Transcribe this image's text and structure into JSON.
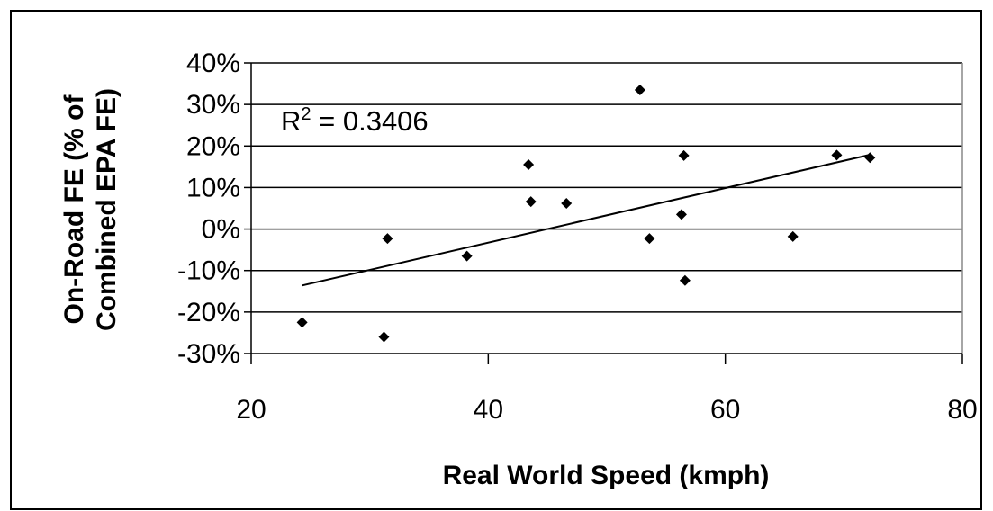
{
  "chart_data": {
    "type": "scatter",
    "title": "",
    "xlabel": "Real World Speed (kmph)",
    "ylabel_lines": [
      "On-Road FE (% of",
      "Combined EPA FE)"
    ],
    "xlim": [
      20,
      80
    ],
    "ylim": [
      -30,
      40
    ],
    "x_ticks": [
      20,
      40,
      60,
      80
    ],
    "y_ticks": [
      -30,
      -20,
      -10,
      0,
      10,
      20,
      30,
      40
    ],
    "y_tick_format": "percent",
    "horizontal_grid": true,
    "vertical_grid": false,
    "marker": "diamond",
    "color": "#000000",
    "annotation": {
      "prefix": "R",
      "superscript": "2",
      "text": " = 0.3406"
    },
    "points": [
      {
        "x": 24.3,
        "y": -22.5
      },
      {
        "x": 31.2,
        "y": -26.0
      },
      {
        "x": 31.5,
        "y": -2.3
      },
      {
        "x": 38.2,
        "y": -6.5
      },
      {
        "x": 43.4,
        "y": 15.5
      },
      {
        "x": 43.6,
        "y": 6.6
      },
      {
        "x": 46.6,
        "y": 6.2
      },
      {
        "x": 52.8,
        "y": 33.5
      },
      {
        "x": 53.6,
        "y": -2.3
      },
      {
        "x": 56.3,
        "y": 3.5
      },
      {
        "x": 56.5,
        "y": 17.7
      },
      {
        "x": 56.6,
        "y": -12.4
      },
      {
        "x": 65.7,
        "y": -1.8
      },
      {
        "x": 69.4,
        "y": 17.8
      },
      {
        "x": 72.2,
        "y": 17.2
      }
    ],
    "trendline": {
      "x": [
        24.3,
        72.2
      ],
      "y": [
        -13.6,
        17.9
      ]
    }
  }
}
